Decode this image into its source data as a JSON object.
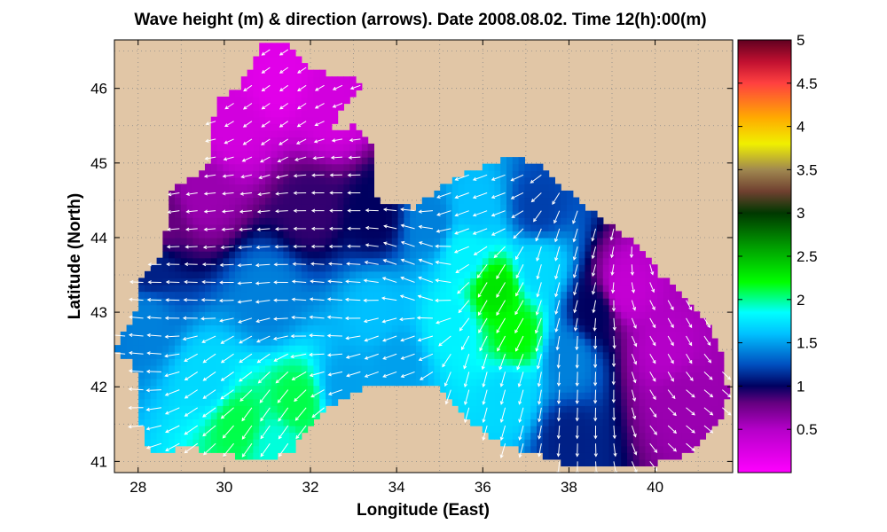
{
  "chart_data": {
    "type": "heatmap",
    "title": "Wave height (m) & direction (arrows). Date 2008.08.02. Time 12(h):00(m)",
    "xlabel": "Longitude (East)",
    "ylabel": "Latitude (North)",
    "xlim": [
      27.45,
      41.8
    ],
    "ylim": [
      40.85,
      46.65
    ],
    "x_ticks": [
      "28",
      "30",
      "32",
      "34",
      "36",
      "38",
      "40"
    ],
    "y_ticks": [
      "41",
      "42",
      "43",
      "44",
      "45",
      "46"
    ],
    "colorbar": {
      "range": [
        0,
        5
      ],
      "tick_labels": [
        "0.5",
        "1",
        "1.5",
        "2",
        "2.5",
        "3",
        "3.5",
        "4",
        "4.5",
        "5"
      ],
      "tick_values": [
        0.5,
        1,
        1.5,
        2,
        2.5,
        3,
        3.5,
        4,
        4.5,
        5
      ],
      "colormap": [
        [
          0.0,
          "#ff00ff"
        ],
        [
          0.5,
          "#b400c8"
        ],
        [
          0.8,
          "#660080"
        ],
        [
          1.0,
          "#000060"
        ],
        [
          1.25,
          "#0050c0"
        ],
        [
          1.6,
          "#00c0ff"
        ],
        [
          1.85,
          "#00ffff"
        ],
        [
          2.2,
          "#00ff00"
        ],
        [
          2.6,
          "#00a000"
        ],
        [
          3.0,
          "#003800"
        ],
        [
          3.25,
          "#704030"
        ],
        [
          3.5,
          "#a08850"
        ],
        [
          3.8,
          "#f0f000"
        ],
        [
          4.1,
          "#ffaa00"
        ],
        [
          4.5,
          "#ff4040"
        ],
        [
          4.75,
          "#c01030"
        ],
        [
          5.0,
          "#600020"
        ]
      ]
    },
    "land_color": "#e1c6a6",
    "arrow_color": "#ffffff",
    "wave_field_points": [
      {
        "lon": 31.2,
        "lat": 46.1,
        "height": 0.2
      },
      {
        "lon": 30.2,
        "lat": 45.5,
        "height": 0.3
      },
      {
        "lon": 32.5,
        "lat": 45.7,
        "height": 0.3
      },
      {
        "lon": 29.5,
        "lat": 44.6,
        "height": 0.6
      },
      {
        "lon": 28.5,
        "lat": 44.2,
        "height": 0.8
      },
      {
        "lon": 32.0,
        "lat": 44.4,
        "height": 0.9
      },
      {
        "lon": 33.5,
        "lat": 44.3,
        "height": 1.0
      },
      {
        "lon": 28.3,
        "lat": 43.6,
        "height": 1.1
      },
      {
        "lon": 28.2,
        "lat": 42.9,
        "height": 1.4
      },
      {
        "lon": 31.0,
        "lat": 43.2,
        "height": 1.4
      },
      {
        "lon": 33.5,
        "lat": 43.0,
        "height": 1.6
      },
      {
        "lon": 34.8,
        "lat": 44.2,
        "height": 1.4
      },
      {
        "lon": 35.8,
        "lat": 44.4,
        "height": 1.6
      },
      {
        "lon": 35.6,
        "lat": 43.8,
        "height": 1.8
      },
      {
        "lon": 36.3,
        "lat": 43.3,
        "height": 2.3
      },
      {
        "lon": 36.8,
        "lat": 42.7,
        "height": 2.2
      },
      {
        "lon": 35.3,
        "lat": 42.8,
        "height": 1.8
      },
      {
        "lon": 37.3,
        "lat": 43.6,
        "height": 1.7
      },
      {
        "lon": 37.3,
        "lat": 44.4,
        "height": 1.2
      },
      {
        "lon": 38.0,
        "lat": 42.4,
        "height": 1.4
      },
      {
        "lon": 38.6,
        "lat": 43.0,
        "height": 1.0
      },
      {
        "lon": 39.3,
        "lat": 43.3,
        "height": 0.4
      },
      {
        "lon": 40.2,
        "lat": 42.5,
        "height": 0.5
      },
      {
        "lon": 40.6,
        "lat": 41.8,
        "height": 0.6
      },
      {
        "lon": 38.0,
        "lat": 41.3,
        "height": 1.1
      },
      {
        "lon": 36.6,
        "lat": 41.9,
        "height": 1.7
      },
      {
        "lon": 34.0,
        "lat": 42.3,
        "height": 1.5
      },
      {
        "lon": 29.6,
        "lat": 42.1,
        "height": 1.7
      },
      {
        "lon": 30.3,
        "lat": 41.5,
        "height": 2.1
      },
      {
        "lon": 31.7,
        "lat": 41.8,
        "height": 2.1
      },
      {
        "lon": 31.2,
        "lat": 41.2,
        "height": 1.9
      },
      {
        "lon": 32.8,
        "lat": 42.0,
        "height": 1.5
      }
    ],
    "arrow_directions": [
      {
        "lon": 29.0,
        "lat": 45.0,
        "dir_deg": 190
      },
      {
        "lon": 31.0,
        "lat": 45.8,
        "dir_deg": 215
      },
      {
        "lon": 30.0,
        "lat": 44.2,
        "dir_deg": 185
      },
      {
        "lon": 32.5,
        "lat": 44.2,
        "dir_deg": 180
      },
      {
        "lon": 29.5,
        "lat": 43.3,
        "dir_deg": 178
      },
      {
        "lon": 32.5,
        "lat": 43.2,
        "dir_deg": 175
      },
      {
        "lon": 34.5,
        "lat": 43.5,
        "dir_deg": 160
      },
      {
        "lon": 36.0,
        "lat": 44.5,
        "dir_deg": 200
      },
      {
        "lon": 36.5,
        "lat": 43.2,
        "dir_deg": 240
      },
      {
        "lon": 37.8,
        "lat": 43.5,
        "dir_deg": 255
      },
      {
        "lon": 38.5,
        "lat": 42.2,
        "dir_deg": 268
      },
      {
        "lon": 40.2,
        "lat": 42.5,
        "dir_deg": 300
      },
      {
        "lon": 41.0,
        "lat": 41.7,
        "dir_deg": 320
      },
      {
        "lon": 36.0,
        "lat": 42.0,
        "dir_deg": 255
      },
      {
        "lon": 34.0,
        "lat": 42.5,
        "dir_deg": 200
      },
      {
        "lon": 30.0,
        "lat": 42.2,
        "dir_deg": 215
      },
      {
        "lon": 31.0,
        "lat": 41.5,
        "dir_deg": 235
      },
      {
        "lon": 28.0,
        "lat": 42.6,
        "dir_deg": 175
      }
    ]
  }
}
